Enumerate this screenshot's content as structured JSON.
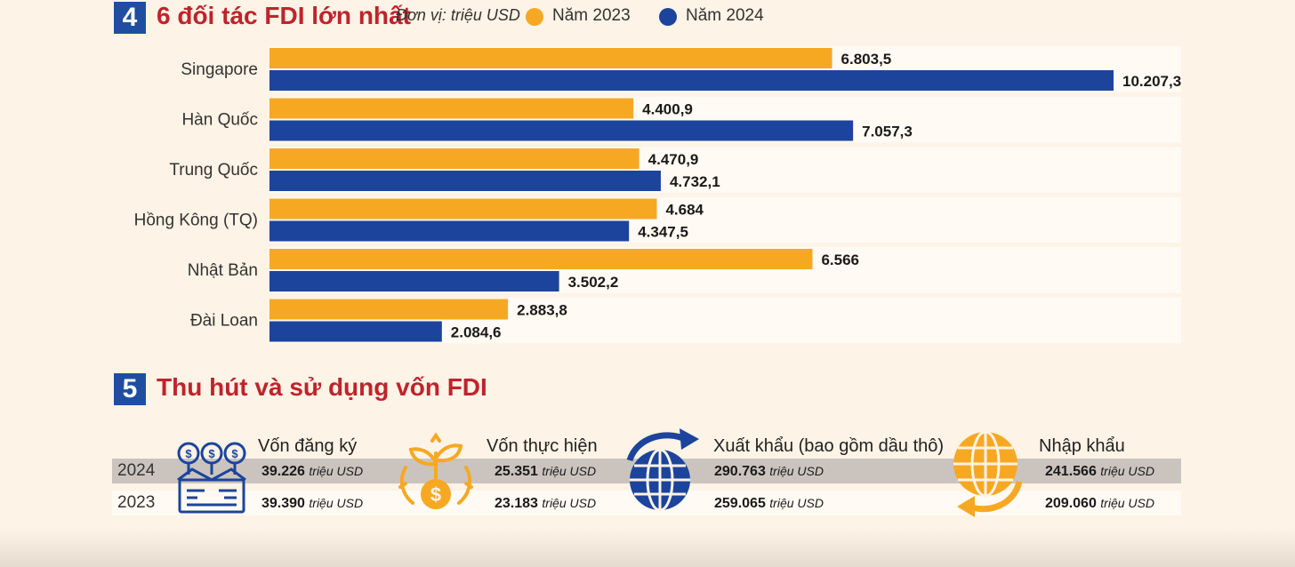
{
  "section4": {
    "number": "4",
    "title": "6 đối tác FDI lớn nhất",
    "unit": "Đơn vị: triệu USD",
    "legend": [
      {
        "label": "Năm 2023",
        "color": "#f7a823"
      },
      {
        "label": "Năm 2024",
        "color": "#1c449c"
      }
    ]
  },
  "chart_data": {
    "type": "bar",
    "orientation": "horizontal",
    "title": "6 đối tác FDI lớn nhất",
    "unit": "triệu USD",
    "categories": [
      "Singapore",
      "Hàn Quốc",
      "Trung Quốc",
      "Hồng Kông (TQ)",
      "Nhật Bản",
      "Đài Loan"
    ],
    "series": [
      {
        "name": "Năm 2023",
        "color": "#f7a823",
        "values": [
          6803.5,
          4400.9,
          4470.9,
          4684,
          6566,
          2883.8
        ],
        "labels": [
          "6.803,5",
          "4.400,9",
          "4.470,9",
          "4.684",
          "6.566",
          "2.883,8"
        ]
      },
      {
        "name": "Năm 2024",
        "color": "#1c449c",
        "values": [
          10207.3,
          7057.3,
          4732.1,
          4347.5,
          3502.2,
          2084.6
        ],
        "labels": [
          "10.207,3",
          "7.057,3",
          "4.732,1",
          "4.347,5",
          "3.502,2",
          "2.084,6"
        ]
      }
    ],
    "xlim": [
      0,
      10207.3
    ],
    "legend_position": "top"
  },
  "section5": {
    "number": "5",
    "title": "Thu hút và sử dụng vốn FDI",
    "years": [
      "2024",
      "2023"
    ],
    "unit": "triệu USD",
    "metrics": [
      {
        "title": "Vốn đăng ký",
        "icon": "money-box-icon",
        "values": [
          "39.226",
          "39.390"
        ]
      },
      {
        "title": "Vốn thực hiện",
        "icon": "money-plant-icon",
        "values": [
          "25.351",
          "23.183"
        ]
      },
      {
        "title": "Xuất khẩu (bao gồm dầu thô)",
        "icon": "globe-export-icon",
        "values": [
          "290.763",
          "259.065"
        ]
      },
      {
        "title": "Nhập khẩu",
        "icon": "globe-import-icon",
        "values": [
          "241.566",
          "209.060"
        ]
      }
    ]
  }
}
